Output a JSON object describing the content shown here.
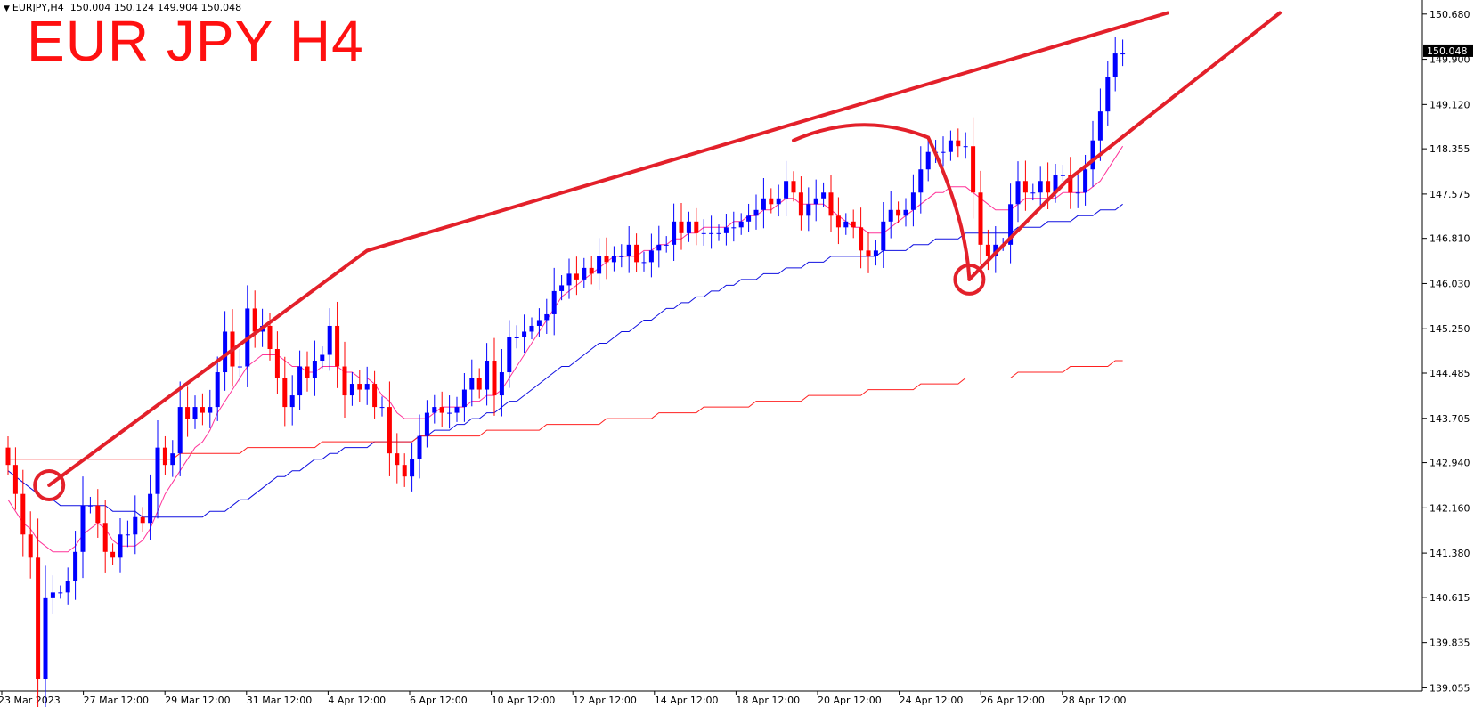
{
  "header": {
    "symbol_label": "EURJPY,H4",
    "ohlc": "150.004 150.124 149.904 150.048",
    "overlay_title": "EUR JPY H4"
  },
  "colors": {
    "bull": "#0000ff",
    "bear": "#ff0000",
    "ma_fast": "#ff3399",
    "ma_mid": "#1010e0",
    "ma_slow": "#ff2020",
    "annotation": "#e3202a",
    "axis": "#000000",
    "price_tag_bg": "#000000",
    "price_tag_text": "#ffffff"
  },
  "chart_data": {
    "type": "candlestick",
    "ylim": [
      139.0,
      150.8
    ],
    "y_ticks": [
      "150.680",
      "149.900",
      "149.120",
      "148.355",
      "147.575",
      "146.810",
      "146.030",
      "145.250",
      "144.485",
      "143.705",
      "142.940",
      "142.160",
      "141.380",
      "140.615",
      "139.835",
      "139.055"
    ],
    "x_ticks": [
      "23 Mar 2023",
      "27 Mar 12:00",
      "29 Mar 12:00",
      "31 Mar 12:00",
      "4 Apr 12:00",
      "6 Apr 12:00",
      "10 Apr 12:00",
      "12 Apr 12:00",
      "14 Apr 12:00",
      "18 Apr 12:00",
      "20 Apr 12:00",
      "24 Apr 12:00",
      "26 Apr 12:00",
      "28 Apr 12:00"
    ],
    "current_price": "150.048",
    "close": [
      142.9,
      142.4,
      141.7,
      141.3,
      139.2,
      140.6,
      140.7,
      140.7,
      140.9,
      141.4,
      142.2,
      142.2,
      141.9,
      141.4,
      141.3,
      141.7,
      141.7,
      142.0,
      141.9,
      142.4,
      143.2,
      142.9,
      143.1,
      143.9,
      143.7,
      143.9,
      143.8,
      143.9,
      144.5,
      145.2,
      144.6,
      144.6,
      145.6,
      145.2,
      145.3,
      144.9,
      144.4,
      143.9,
      144.1,
      144.6,
      144.4,
      144.7,
      144.8,
      145.3,
      144.6,
      144.1,
      144.3,
      144.2,
      144.3,
      143.9,
      143.9,
      143.1,
      142.9,
      142.7,
      143.0,
      143.4,
      143.8,
      143.9,
      143.8,
      143.8,
      143.9,
      144.2,
      144.4,
      144.2,
      144.7,
      144.1,
      144.5,
      145.1,
      145.1,
      145.2,
      145.3,
      145.4,
      145.5,
      145.9,
      146.0,
      146.2,
      146.1,
      146.3,
      146.2,
      146.5,
      146.4,
      146.5,
      146.5,
      146.7,
      146.4,
      146.4,
      146.6,
      146.7,
      146.7,
      147.1,
      146.9,
      147.1,
      146.9,
      146.9,
      146.9,
      146.9,
      147.0,
      147.0,
      147.1,
      147.2,
      147.3,
      147.5,
      147.4,
      147.5,
      147.8,
      147.6,
      147.2,
      147.4,
      147.5,
      147.6,
      147.2,
      147.0,
      147.1,
      147.0,
      146.6,
      146.5,
      146.6,
      147.1,
      147.3,
      147.2,
      147.3,
      147.6,
      148.0,
      148.3,
      148.3,
      148.3,
      148.5,
      148.4,
      148.4,
      147.6,
      146.7,
      146.5,
      146.7,
      146.7,
      147.4,
      147.8,
      147.6,
      147.6,
      147.8,
      147.6,
      147.9,
      147.9,
      147.6,
      147.6,
      148.0,
      148.5,
      149.0,
      149.6,
      150.0,
      150.0
    ],
    "series": [
      {
        "name": "",
        "values": [
          142.3,
          142.1,
          141.9,
          141.8,
          141.6,
          141.5,
          141.4,
          141.4,
          141.4,
          141.5,
          141.7,
          141.8,
          141.9,
          141.8,
          141.6,
          141.5,
          141.5,
          141.5,
          141.6,
          141.8,
          142.1,
          142.4,
          142.6,
          142.8,
          143.0,
          143.2,
          143.3,
          143.5,
          143.8,
          144.0,
          144.2,
          144.4,
          144.6,
          144.7,
          144.8,
          144.8,
          144.8,
          144.7,
          144.6,
          144.6,
          144.5,
          144.5,
          144.6,
          144.6,
          144.6,
          144.5,
          144.5,
          144.4,
          144.4,
          144.3,
          144.1,
          144.0,
          143.8,
          143.7,
          143.7,
          143.7,
          143.7,
          143.8,
          143.9,
          143.9,
          143.9,
          143.9,
          144.0,
          144.0,
          144.1,
          144.1,
          144.2,
          144.4,
          144.6,
          144.8,
          145.0,
          145.2,
          145.4,
          145.6,
          145.8,
          145.9,
          146.0,
          146.1,
          146.2,
          146.3,
          146.4,
          146.5,
          146.5,
          146.5,
          146.5,
          146.6,
          146.6,
          146.7,
          146.7,
          146.8,
          146.8,
          146.9,
          146.9,
          147.0,
          147.0,
          147.0,
          147.0,
          147.1,
          147.1,
          147.2,
          147.2,
          147.3,
          147.3,
          147.4,
          147.5,
          147.5,
          147.4,
          147.4,
          147.4,
          147.4,
          147.3,
          147.2,
          147.1,
          147.0,
          147.0,
          146.9,
          146.9,
          146.9,
          147.0,
          147.1,
          147.2,
          147.3,
          147.4,
          147.5,
          147.6,
          147.6,
          147.7,
          147.7,
          147.7,
          147.6,
          147.5,
          147.4,
          147.3,
          147.3,
          147.3,
          147.4,
          147.5,
          147.5,
          147.5,
          147.5,
          147.5,
          147.6,
          147.6,
          147.6,
          147.6,
          147.7,
          147.8,
          148.0,
          148.2,
          148.4
        ]
      },
      {
        "name": "",
        "values": [
          142.8,
          142.7,
          142.6,
          142.5,
          142.4,
          142.3,
          142.3,
          142.2,
          142.2,
          142.2,
          142.2,
          142.2,
          142.2,
          142.2,
          142.1,
          142.1,
          142.1,
          142.1,
          142.0,
          142.0,
          142.0,
          142.0,
          142.0,
          142.0,
          142.0,
          142.0,
          142.0,
          142.1,
          142.1,
          142.1,
          142.2,
          142.3,
          142.3,
          142.4,
          142.5,
          142.6,
          142.7,
          142.7,
          142.8,
          142.8,
          142.9,
          143.0,
          143.0,
          143.1,
          143.1,
          143.2,
          143.2,
          143.2,
          143.2,
          143.3,
          143.3,
          143.3,
          143.3,
          143.3,
          143.3,
          143.4,
          143.4,
          143.5,
          143.5,
          143.5,
          143.6,
          143.6,
          143.7,
          143.7,
          143.8,
          143.8,
          143.9,
          144.0,
          144.0,
          144.1,
          144.2,
          144.3,
          144.4,
          144.5,
          144.6,
          144.6,
          144.7,
          144.8,
          144.9,
          145.0,
          145.0,
          145.1,
          145.2,
          145.2,
          145.3,
          145.4,
          145.4,
          145.5,
          145.6,
          145.6,
          145.7,
          145.7,
          145.8,
          145.8,
          145.9,
          145.9,
          146.0,
          146.0,
          146.1,
          146.1,
          146.1,
          146.2,
          146.2,
          146.2,
          146.3,
          146.3,
          146.3,
          146.4,
          146.4,
          146.4,
          146.5,
          146.5,
          146.5,
          146.5,
          146.5,
          146.5,
          146.5,
          146.6,
          146.6,
          146.6,
          146.6,
          146.7,
          146.7,
          146.7,
          146.8,
          146.8,
          146.8,
          146.8,
          146.9,
          146.9,
          146.9,
          146.9,
          146.9,
          146.9,
          146.9,
          147.0,
          147.0,
          147.0,
          147.0,
          147.1,
          147.1,
          147.1,
          147.1,
          147.2,
          147.2,
          147.2,
          147.3,
          147.3,
          147.3,
          147.4
        ]
      },
      {
        "name": "",
        "values": [
          143.0,
          143.0,
          143.0,
          143.0,
          143.0,
          143.0,
          143.0,
          143.0,
          143.0,
          143.0,
          143.0,
          143.0,
          143.0,
          143.0,
          143.0,
          143.0,
          143.0,
          143.0,
          143.0,
          143.0,
          143.0,
          143.0,
          143.0,
          143.1,
          143.1,
          143.1,
          143.1,
          143.1,
          143.1,
          143.1,
          143.1,
          143.1,
          143.2,
          143.2,
          143.2,
          143.2,
          143.2,
          143.2,
          143.2,
          143.2,
          143.2,
          143.2,
          143.3,
          143.3,
          143.3,
          143.3,
          143.3,
          143.3,
          143.3,
          143.3,
          143.3,
          143.3,
          143.3,
          143.3,
          143.3,
          143.4,
          143.4,
          143.4,
          143.4,
          143.4,
          143.4,
          143.4,
          143.4,
          143.4,
          143.5,
          143.5,
          143.5,
          143.5,
          143.5,
          143.5,
          143.5,
          143.5,
          143.6,
          143.6,
          143.6,
          143.6,
          143.6,
          143.6,
          143.6,
          143.6,
          143.7,
          143.7,
          143.7,
          143.7,
          143.7,
          143.7,
          143.7,
          143.8,
          143.8,
          143.8,
          143.8,
          143.8,
          143.8,
          143.9,
          143.9,
          143.9,
          143.9,
          143.9,
          143.9,
          143.9,
          144.0,
          144.0,
          144.0,
          144.0,
          144.0,
          144.0,
          144.0,
          144.1,
          144.1,
          144.1,
          144.1,
          144.1,
          144.1,
          144.1,
          144.1,
          144.2,
          144.2,
          144.2,
          144.2,
          144.2,
          144.2,
          144.2,
          144.3,
          144.3,
          144.3,
          144.3,
          144.3,
          144.3,
          144.4,
          144.4,
          144.4,
          144.4,
          144.4,
          144.4,
          144.4,
          144.5,
          144.5,
          144.5,
          144.5,
          144.5,
          144.5,
          144.5,
          144.6,
          144.6,
          144.6,
          144.6,
          144.6,
          144.6,
          144.7,
          144.7
        ]
      }
    ],
    "annotations": {
      "upper_trendline": [
        [
          5.5,
          142.55
        ],
        [
          48,
          146.6
        ],
        [
          155,
          150.7
        ]
      ],
      "lower_trendline": [
        [
          128.5,
          146.1
        ],
        [
          141.5,
          147.8
        ],
        [
          170,
          150.7
        ]
      ],
      "circles": [
        [
          5.5,
          142.55
        ],
        [
          128.5,
          146.1
        ]
      ],
      "arc_peak": [
        [
          105,
          148.5
        ],
        [
          123,
          148.55
        ],
        [
          127,
          147.2
        ],
        [
          128.5,
          146.1
        ]
      ]
    }
  }
}
